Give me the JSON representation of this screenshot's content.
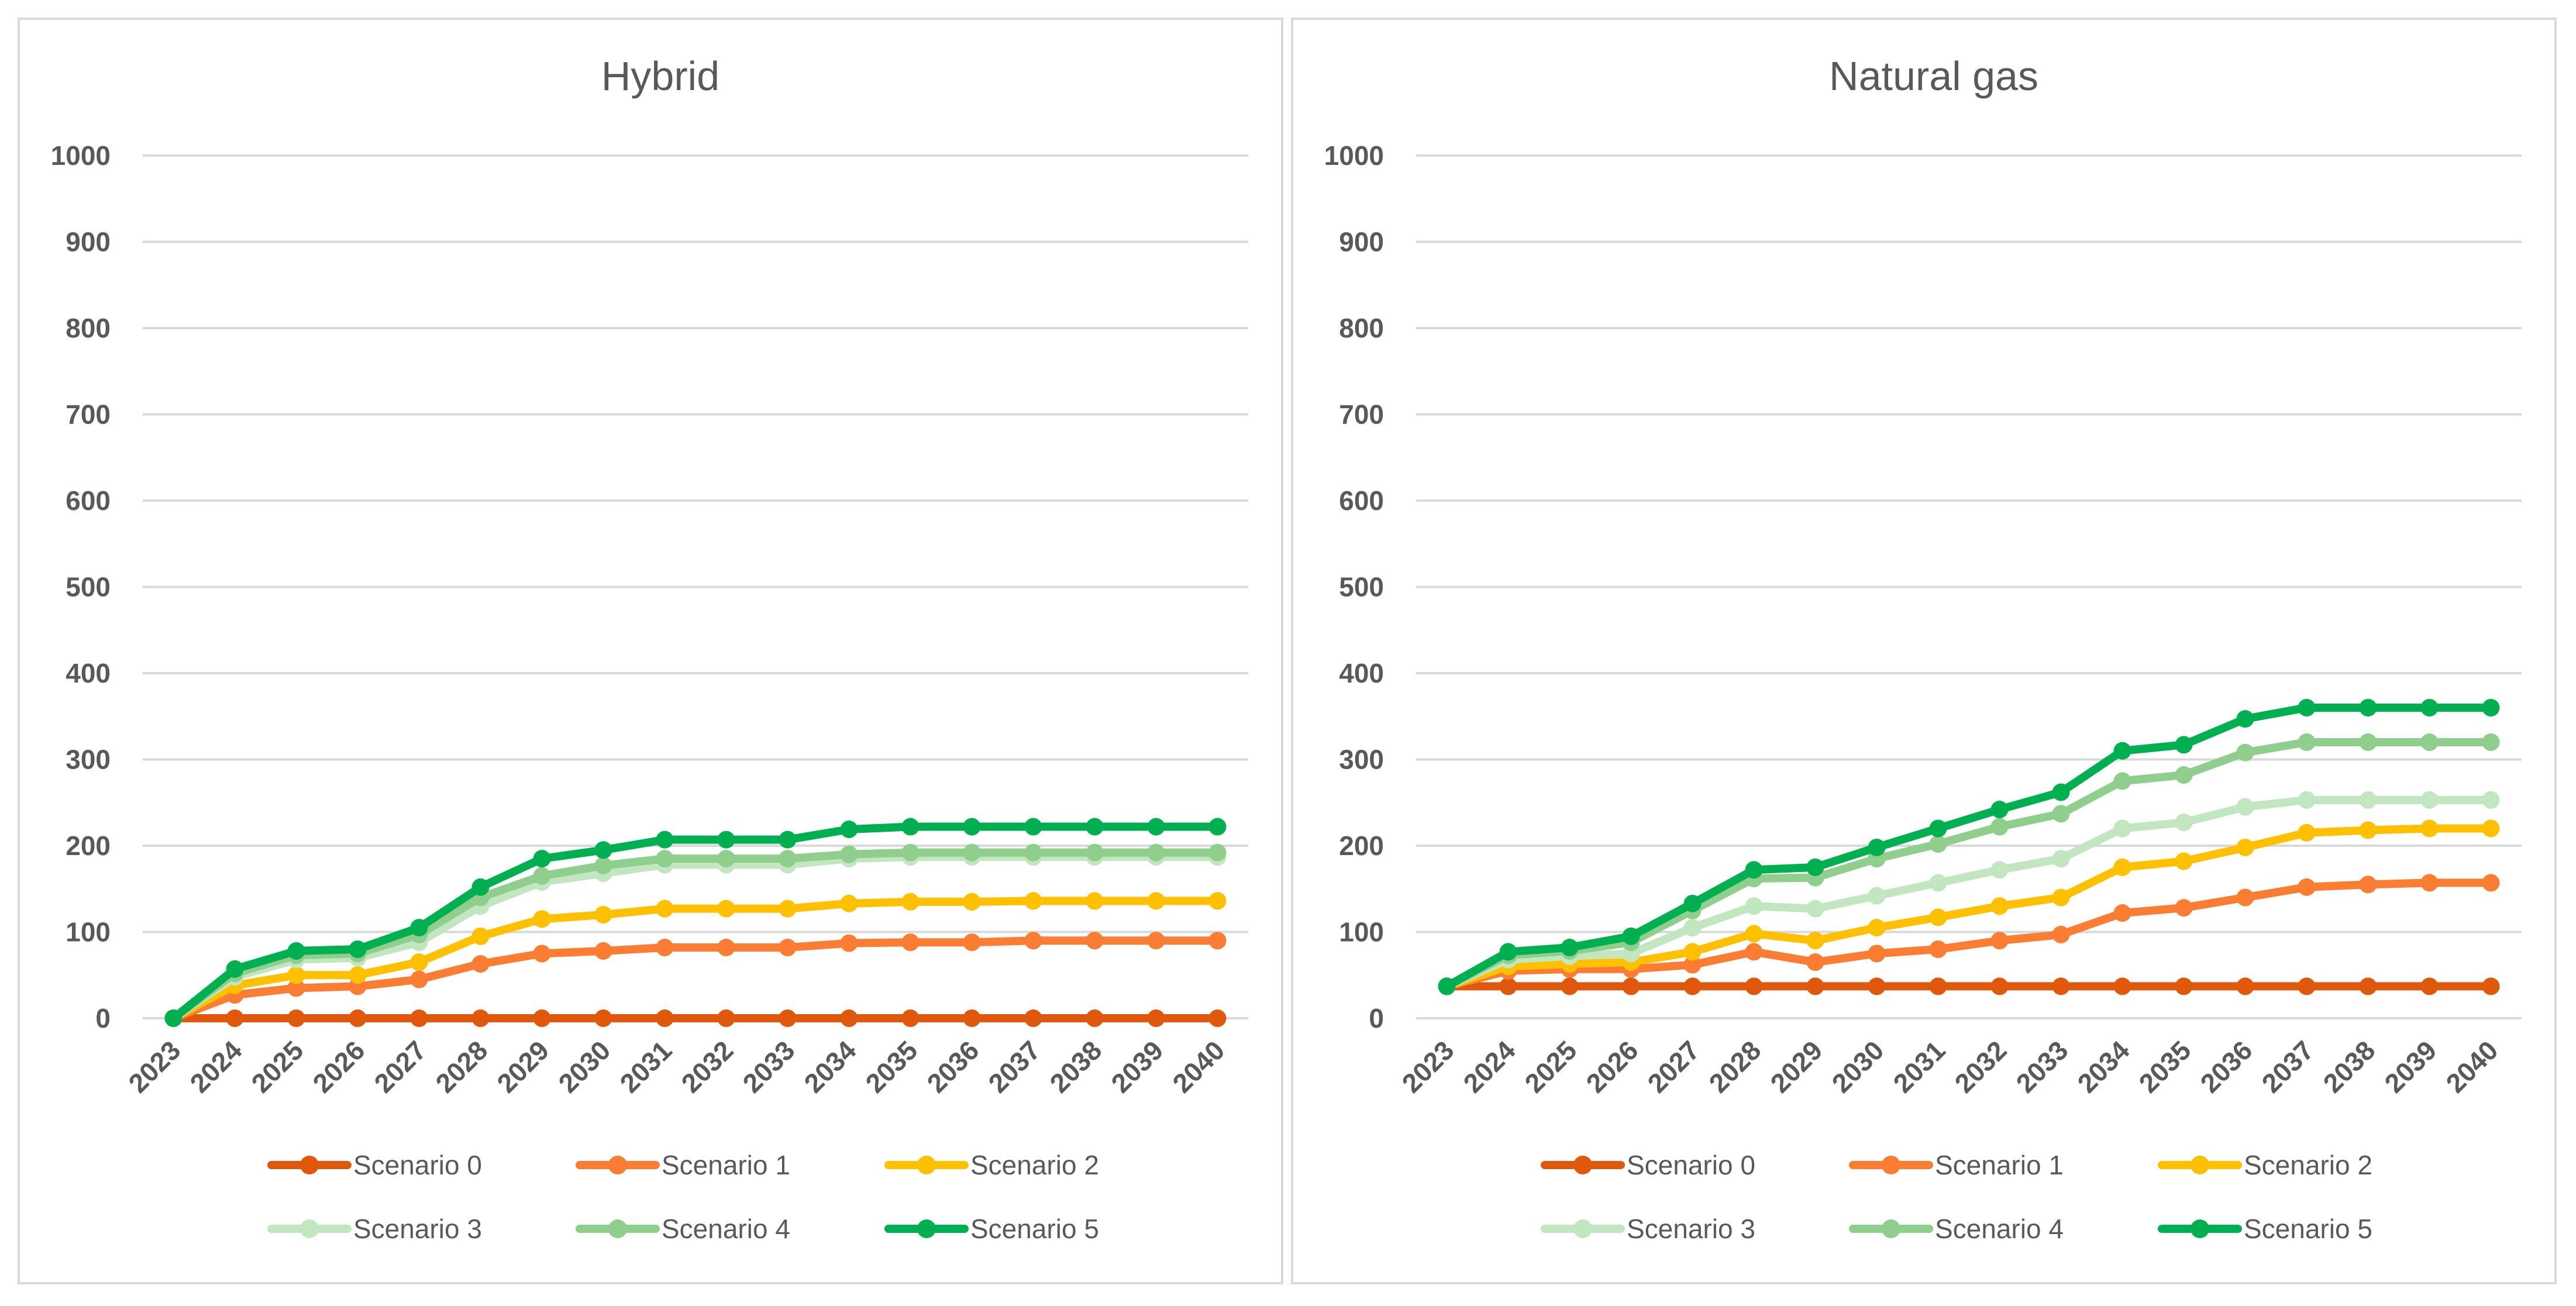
{
  "chart_data": [
    {
      "type": "line",
      "title": "Hybrid",
      "xlabel": "",
      "ylabel": "",
      "ylim": [
        0,
        1000
      ],
      "yticks": [
        0,
        100,
        200,
        300,
        400,
        500,
        600,
        700,
        800,
        900,
        1000
      ],
      "categories": [
        "2023",
        "2024",
        "2025",
        "2026",
        "2027",
        "2028",
        "2029",
        "2030",
        "2031",
        "2032",
        "2033",
        "2034",
        "2035",
        "2036",
        "2037",
        "2038",
        "2039",
        "2040"
      ],
      "legend_position": "bottom",
      "series": [
        {
          "name": "Scenario 0",
          "color": "#e0580c",
          "values": [
            0,
            0,
            0,
            0,
            0,
            0,
            0,
            0,
            0,
            0,
            0,
            0,
            0,
            0,
            0,
            0,
            0,
            0
          ]
        },
        {
          "name": "Scenario 1",
          "color": "#fb7d33",
          "values": [
            0,
            27,
            35,
            37,
            45,
            63,
            75,
            78,
            82,
            82,
            82,
            87,
            88,
            88,
            90,
            90,
            90,
            90
          ]
        },
        {
          "name": "Scenario 2",
          "color": "#ffc000",
          "values": [
            0,
            38,
            50,
            50,
            65,
            95,
            115,
            120,
            127,
            127,
            127,
            133,
            135,
            135,
            136,
            136,
            136,
            136
          ]
        },
        {
          "name": "Scenario 3",
          "color": "#c2e6bf",
          "values": [
            0,
            48,
            68,
            70,
            88,
            130,
            158,
            168,
            178,
            178,
            178,
            185,
            187,
            187,
            187,
            187,
            187,
            187
          ]
        },
        {
          "name": "Scenario 4",
          "color": "#8fce8c",
          "values": [
            0,
            52,
            73,
            75,
            97,
            140,
            165,
            177,
            185,
            185,
            185,
            190,
            192,
            192,
            192,
            192,
            192,
            192
          ]
        },
        {
          "name": "Scenario 5",
          "color": "#00b050",
          "values": [
            0,
            57,
            78,
            80,
            105,
            152,
            185,
            195,
            207,
            207,
            207,
            219,
            222,
            222,
            222,
            222,
            222,
            222
          ]
        }
      ]
    },
    {
      "type": "line",
      "title": "Natural gas",
      "xlabel": "",
      "ylabel": "",
      "ylim": [
        0,
        1000
      ],
      "yticks": [
        0,
        100,
        200,
        300,
        400,
        500,
        600,
        700,
        800,
        900,
        1000
      ],
      "categories": [
        "2023",
        "2024",
        "2025",
        "2026",
        "2027",
        "2028",
        "2029",
        "2030",
        "2031",
        "2032",
        "2033",
        "2034",
        "2035",
        "2036",
        "2037",
        "2038",
        "2039",
        "2040"
      ],
      "legend_position": "bottom",
      "series": [
        {
          "name": "Scenario 0",
          "color": "#e0580c",
          "values": [
            37,
            37,
            37,
            37,
            37,
            37,
            37,
            37,
            37,
            37,
            37,
            37,
            37,
            37,
            37,
            37,
            37,
            37
          ]
        },
        {
          "name": "Scenario 1",
          "color": "#fb7d33",
          "values": [
            37,
            55,
            57,
            57,
            62,
            77,
            65,
            75,
            80,
            90,
            97,
            122,
            128,
            140,
            152,
            155,
            157,
            157
          ]
        },
        {
          "name": "Scenario 2",
          "color": "#ffc000",
          "values": [
            37,
            60,
            63,
            65,
            77,
            98,
            90,
            105,
            117,
            130,
            140,
            175,
            182,
            198,
            215,
            218,
            220,
            220
          ]
        },
        {
          "name": "Scenario 3",
          "color": "#c2e6bf",
          "values": [
            37,
            68,
            72,
            75,
            105,
            130,
            127,
            142,
            157,
            172,
            185,
            220,
            227,
            245,
            253,
            253,
            253,
            253
          ]
        },
        {
          "name": "Scenario 4",
          "color": "#8fce8c",
          "values": [
            37,
            73,
            78,
            88,
            125,
            162,
            163,
            185,
            202,
            222,
            237,
            275,
            282,
            308,
            320,
            320,
            320,
            320
          ]
        },
        {
          "name": "Scenario 5",
          "color": "#00b050",
          "values": [
            37,
            77,
            82,
            95,
            133,
            172,
            175,
            198,
            220,
            242,
            262,
            310,
            317,
            347,
            360,
            360,
            360,
            360
          ]
        }
      ]
    }
  ]
}
